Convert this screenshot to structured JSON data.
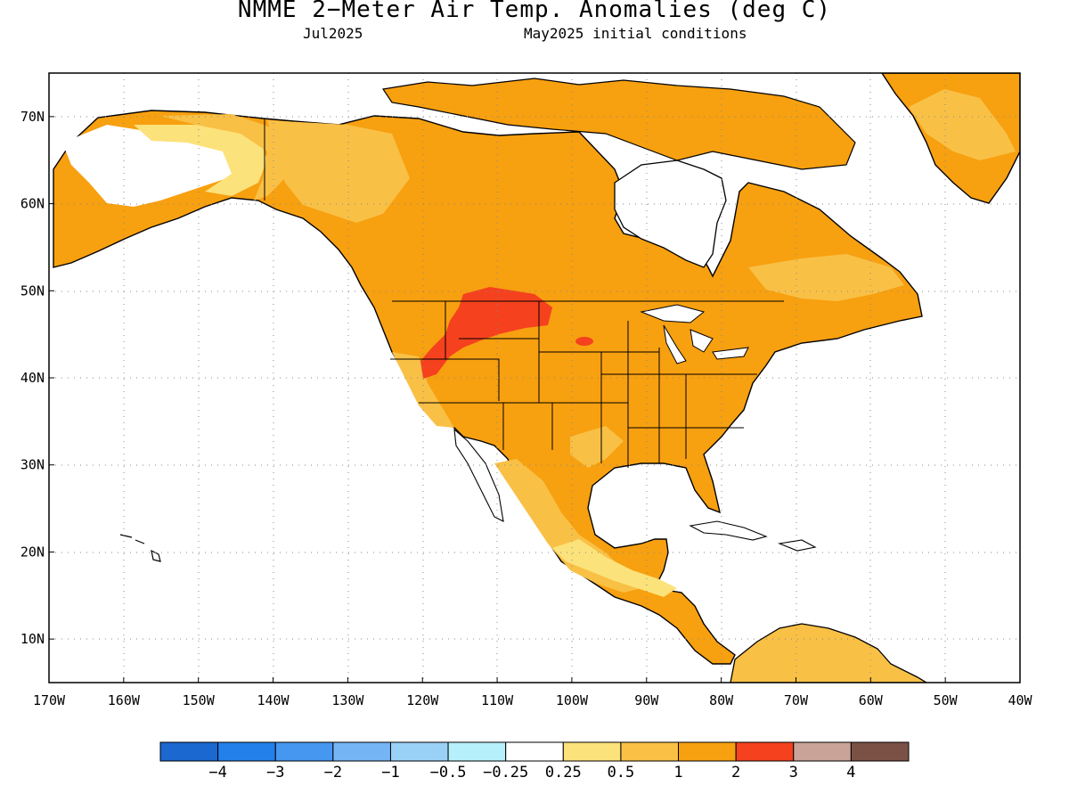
{
  "header": {
    "title": "NMME 2−Meter Air Temp. Anomalies (deg C)",
    "target_month": "Jul2025",
    "initial_conditions": "May2025 initial conditions"
  },
  "map": {
    "lon_range": [
      -170,
      -40
    ],
    "lat_range": [
      5,
      75
    ],
    "lon_ticks": [
      "170W",
      "160W",
      "150W",
      "140W",
      "130W",
      "120W",
      "110W",
      "100W",
      "90W",
      "80W",
      "70W",
      "60W",
      "50W",
      "40W"
    ],
    "lat_ticks": [
      "70N",
      "60N",
      "50N",
      "40N",
      "30N",
      "20N",
      "10N"
    ],
    "colors": {
      "0.25-0.5": "#fce27a",
      "0.5-1": "#f9c046",
      "1-2": "#f7a010",
      "2-3": "#f5411e",
      "ocean": "#ffffff",
      "coast": "#000000"
    }
  },
  "colorbar": {
    "bins": [
      {
        "color": "#1a68d0"
      },
      {
        "color": "#2380ea"
      },
      {
        "color": "#4597f0"
      },
      {
        "color": "#76b5f5"
      },
      {
        "color": "#9ad1f7"
      },
      {
        "color": "#b6f0fb"
      },
      {
        "color": "#ffffff"
      },
      {
        "color": "#fce27a"
      },
      {
        "color": "#f9c046"
      },
      {
        "color": "#f7a010"
      },
      {
        "color": "#f5411e"
      },
      {
        "color": "#c9a398"
      },
      {
        "color": "#7b5146"
      }
    ],
    "labels": [
      "−4",
      "−3",
      "−2",
      "−1",
      "−0.5",
      "−0.25",
      "0.25",
      "0.5",
      "1",
      "2",
      "3",
      "4"
    ]
  }
}
